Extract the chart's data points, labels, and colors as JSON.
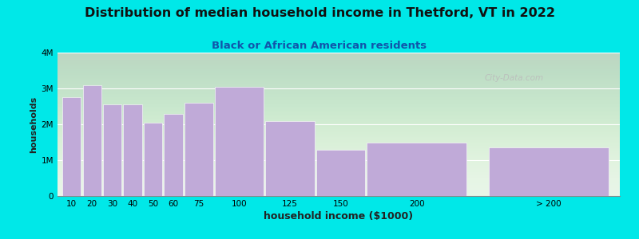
{
  "title": "Distribution of median household income in Thetford, VT in 2022",
  "subtitle": "Black or African American residents",
  "xlabel": "household income ($1000)",
  "ylabel": "households",
  "bar_labels": [
    "10",
    "20",
    "30",
    "40",
    "50",
    "60",
    "75",
    "100",
    "125",
    "150",
    "200",
    "> 200"
  ],
  "bar_values": [
    2750000,
    3100000,
    2550000,
    2550000,
    2050000,
    2300000,
    2600000,
    3050000,
    2100000,
    1300000,
    1500000,
    1350000
  ],
  "bar_color": "#c0aad8",
  "bar_widths": [
    10,
    10,
    10,
    10,
    10,
    10,
    15,
    25,
    25,
    25,
    50,
    60
  ],
  "bar_lefts": [
    5,
    15,
    25,
    35,
    45,
    55,
    65,
    80,
    105,
    130,
    155,
    215
  ],
  "xlim": [
    3,
    280
  ],
  "ylim": [
    0,
    4000000
  ],
  "yticks": [
    0,
    1000000,
    2000000,
    3000000,
    4000000
  ],
  "ytick_labels": [
    "0",
    "1M",
    "2M",
    "3M",
    "4M"
  ],
  "background_color": "#00e8e8",
  "plot_bg_top": "#e6f5e6",
  "plot_bg_bottom": "#f8f8f8",
  "title_fontsize": 11.5,
  "subtitle_fontsize": 9.5,
  "xlabel_fontsize": 9,
  "ylabel_fontsize": 8,
  "tick_fontsize": 7.5,
  "watermark_text": "City-Data.com"
}
